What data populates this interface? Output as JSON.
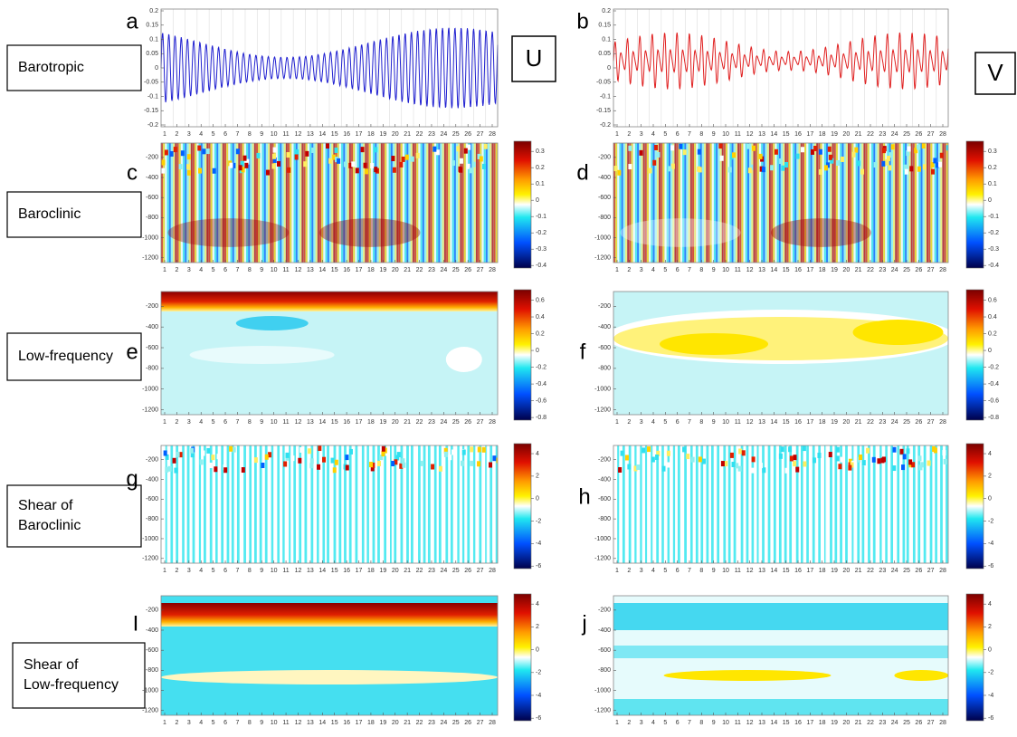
{
  "column_headers": [
    "U",
    "V"
  ],
  "xticks": [
    1,
    2,
    3,
    4,
    5,
    6,
    7,
    8,
    9,
    10,
    11,
    12,
    13,
    14,
    15,
    16,
    17,
    18,
    19,
    20,
    21,
    22,
    23,
    24,
    25,
    26,
    27,
    28
  ],
  "rows": [
    {
      "label": [
        "Barotropic"
      ],
      "panels": [
        "a",
        "b"
      ],
      "yticks": [
        0.2,
        0.15,
        0.1,
        0.05,
        0,
        -0.05,
        -0.1,
        -0.15,
        -0.2
      ]
    },
    {
      "label": [
        "Baroclinic"
      ],
      "panels": [
        "c",
        "d"
      ],
      "yticks": [
        -200,
        -400,
        -600,
        -800,
        -1000,
        -1200
      ],
      "colorbar_ticks": [
        [
          0.3,
          0.2,
          0.1,
          0,
          -0.1,
          -0.2,
          -0.3,
          -0.4
        ],
        [
          0.3,
          0.2,
          0.1,
          0,
          -0.1,
          -0.2,
          -0.3,
          -0.4
        ]
      ]
    },
    {
      "label": [
        "Low-frequency"
      ],
      "panels": [
        "e",
        "f"
      ],
      "yticks": [
        -200,
        -400,
        -600,
        -800,
        -1000,
        -1200
      ],
      "colorbar_ticks": [
        [
          0.6,
          0.4,
          0.2,
          0,
          -0.2,
          -0.4,
          -0.6,
          -0.8
        ],
        [
          0.6,
          0.4,
          0.2,
          0,
          -0.2,
          -0.4,
          -0.6,
          -0.8
        ]
      ]
    },
    {
      "label": [
        "Shear of",
        "Baroclinic"
      ],
      "panels": [
        "g",
        "h"
      ],
      "yticks": [
        -200,
        -400,
        -600,
        -800,
        -1000,
        -1200
      ],
      "colorbar_ticks": [
        [
          4,
          2,
          0,
          -2,
          -4,
          -6
        ],
        [
          4,
          2,
          0,
          -2,
          -4,
          -6
        ]
      ]
    },
    {
      "label": [
        "Shear of",
        "Low-frequency"
      ],
      "panels": [
        "I",
        "j"
      ],
      "yticks": [
        -200,
        -400,
        -600,
        -800,
        -1000,
        -1200
      ],
      "colorbar_ticks": [
        [
          4,
          2,
          0,
          -2,
          -4,
          -6
        ],
        [
          4,
          2,
          0,
          -2,
          -4,
          -6
        ]
      ]
    }
  ]
}
